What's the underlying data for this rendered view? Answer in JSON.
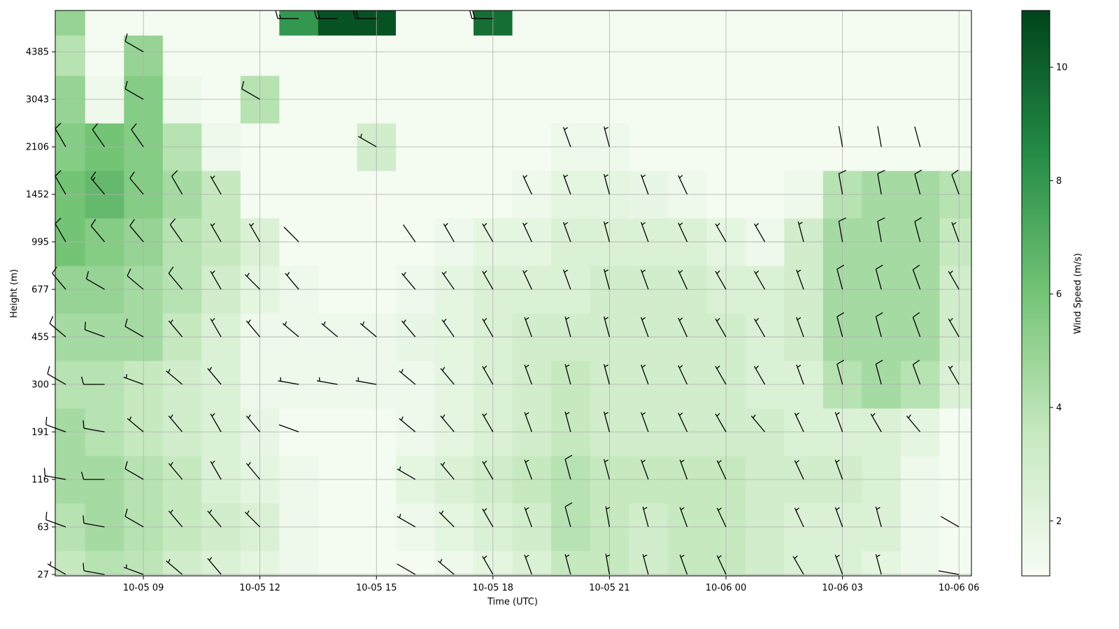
{
  "chart_data": {
    "type": "heatmap",
    "x_label": "Time (UTC)",
    "y_label": "Height (m)",
    "colorbar_label": "Wind Speed (m/s)",
    "x": [
      7,
      8,
      9,
      10,
      11,
      12,
      13,
      14,
      15,
      16,
      17,
      18,
      19,
      20,
      21,
      22,
      23,
      24,
      25,
      26,
      27,
      28,
      29,
      30
    ],
    "y": [
      0,
      1,
      2,
      3,
      4,
      5,
      6,
      7,
      8,
      9,
      10,
      11,
      11.7
    ],
    "xlim": [
      6.73,
      30.32
    ],
    "xticks": [
      {
        "value": 9,
        "label": "10-05 09"
      },
      {
        "value": 12,
        "label": "10-05 12"
      },
      {
        "value": 15,
        "label": "10-05 15"
      },
      {
        "value": 18,
        "label": "10-05 18"
      },
      {
        "value": 21,
        "label": "10-05 21"
      },
      {
        "value": 24,
        "label": "10-06 00"
      },
      {
        "value": 27,
        "label": "10-06 03"
      },
      {
        "value": 30,
        "label": "10-06 06"
      }
    ],
    "ylim": [
      -0.03,
      11.87
    ],
    "yticks": [
      {
        "value": 0,
        "label": "27"
      },
      {
        "value": 1,
        "label": "63"
      },
      {
        "value": 2,
        "label": "116"
      },
      {
        "value": 3,
        "label": "191"
      },
      {
        "value": 4,
        "label": "300"
      },
      {
        "value": 5,
        "label": "455"
      },
      {
        "value": 6,
        "label": "677"
      },
      {
        "value": 7,
        "label": "995"
      },
      {
        "value": 8,
        "label": "1452"
      },
      {
        "value": 9,
        "label": "2106"
      },
      {
        "value": 10,
        "label": "3043"
      },
      {
        "value": 11,
        "label": "4385"
      }
    ],
    "clim": [
      1.03,
      11.0
    ],
    "cticks": [
      2,
      4,
      6,
      8,
      10
    ],
    "colors": [
      "#f7fcf5",
      "#c7e9c0",
      "#74c476",
      "#238b45",
      "#00441b"
    ],
    "grid": true,
    "speed": [
      [
        3.5,
        4,
        3.8,
        3,
        2.5,
        2,
        1.5,
        1.2,
        1.2,
        1.2,
        1.5,
        2,
        2.5,
        3.5,
        3.5,
        3,
        3.5,
        3.5,
        3,
        2.5,
        2.5,
        2,
        1.5,
        1.2
      ],
      [
        4,
        4.5,
        4,
        3.5,
        3,
        2.5,
        1.5,
        1.2,
        1.2,
        1.5,
        2,
        2.5,
        3,
        4,
        3.5,
        3,
        3.5,
        3.5,
        3,
        2.5,
        2.5,
        2.5,
        1.5,
        1.2
      ],
      [
        4.5,
        4.5,
        4,
        3.5,
        2.5,
        2,
        1.5,
        1.2,
        1.2,
        2,
        2.5,
        3,
        3.5,
        4,
        3.5,
        3.5,
        3.5,
        3.5,
        3,
        3,
        3,
        2.5,
        1.5,
        1.2
      ],
      [
        4.5,
        4,
        3.5,
        3,
        2.5,
        1.8,
        1.2,
        1.2,
        1.2,
        1.5,
        2,
        2.5,
        3,
        3.5,
        3,
        3,
        3,
        3,
        3,
        2.5,
        2.5,
        2.5,
        2,
        1.2
      ],
      [
        4,
        4,
        3.5,
        3,
        2.5,
        1.5,
        1.5,
        1.5,
        1.5,
        1.5,
        2,
        2.5,
        3,
        3.5,
        3,
        3,
        3,
        3,
        2.5,
        2.5,
        4,
        4.5,
        4,
        2.5
      ],
      [
        4.5,
        4.5,
        4.5,
        3.5,
        2.5,
        1.5,
        1.5,
        1.5,
        1.5,
        1.8,
        2,
        2.5,
        3,
        3,
        3,
        3,
        3,
        3,
        2.5,
        3,
        4.5,
        4.5,
        4.5,
        3
      ],
      [
        5,
        5,
        4.5,
        4,
        3,
        2,
        1.5,
        1.2,
        1.2,
        1.5,
        2,
        2.5,
        2.5,
        2.5,
        3,
        3,
        3,
        2.5,
        2.5,
        3,
        4.5,
        4.5,
        4.5,
        3
      ],
      [
        6,
        5.5,
        5,
        4,
        3.5,
        2.5,
        1.2,
        1.2,
        1.2,
        1.2,
        1.5,
        2,
        2,
        2.5,
        2.5,
        2.5,
        2.5,
        2,
        1.5,
        3,
        4.5,
        4.5,
        4.5,
        3.5
      ],
      [
        6,
        6.5,
        5.5,
        4.5,
        3.5,
        1.2,
        1.2,
        1.2,
        1.2,
        1.2,
        1.2,
        1.2,
        1.5,
        2,
        2,
        1.8,
        1.5,
        1.2,
        1.2,
        1.5,
        4,
        4.5,
        4.5,
        4
      ],
      [
        5.5,
        6,
        5.5,
        4,
        1.5,
        1.2,
        1.2,
        1.2,
        3,
        1.2,
        1.2,
        1.2,
        1.2,
        1.5,
        1.5,
        1.2,
        1.2,
        1.2,
        1.2,
        1.2,
        1.2,
        1.2,
        1.2,
        1.2
      ],
      [
        5,
        1.5,
        5.5,
        1.5,
        1.2,
        4,
        1.2,
        1.2,
        1.2,
        1.2,
        1.2,
        1.2,
        1.2,
        1.2,
        1.2,
        1.2,
        1.2,
        1.2,
        1.2,
        1.2,
        1.2,
        1.2,
        1.2,
        1.2
      ],
      [
        4,
        1.2,
        5,
        1.2,
        1.2,
        1.2,
        1.2,
        1.2,
        1.2,
        1.2,
        1.2,
        1.2,
        1.2,
        1.2,
        1.2,
        1.2,
        1.2,
        1.2,
        1.2,
        1.2,
        1.2,
        1.2,
        1.2,
        1.2
      ],
      [
        5,
        1.2,
        1.2,
        1.2,
        1.2,
        1.2,
        8,
        10.5,
        10.5,
        1.2,
        1.2,
        9.5,
        1.2,
        1.2,
        1.2,
        1.2,
        1.2,
        1.2,
        1.2,
        1.2,
        1.2,
        1.2,
        1.2,
        1.2
      ]
    ],
    "direction": [
      [
        300,
        280,
        290,
        310,
        320,
        null,
        null,
        null,
        null,
        300,
        310,
        330,
        340,
        345,
        350,
        345,
        340,
        335,
        null,
        330,
        340,
        345,
        null,
        280
      ],
      [
        290,
        280,
        300,
        320,
        320,
        315,
        null,
        null,
        null,
        300,
        315,
        330,
        340,
        345,
        350,
        345,
        340,
        335,
        null,
        335,
        340,
        345,
        null,
        300
      ],
      [
        280,
        270,
        300,
        320,
        330,
        320,
        null,
        null,
        null,
        300,
        320,
        330,
        340,
        345,
        345,
        340,
        340,
        335,
        null,
        335,
        340,
        null,
        null,
        null
      ],
      [
        290,
        280,
        310,
        320,
        330,
        320,
        290,
        null,
        null,
        310,
        320,
        330,
        340,
        345,
        345,
        340,
        335,
        330,
        320,
        335,
        340,
        330,
        320,
        null
      ],
      [
        300,
        270,
        290,
        310,
        320,
        null,
        280,
        280,
        280,
        310,
        320,
        330,
        340,
        345,
        345,
        340,
        335,
        330,
        330,
        340,
        345,
        345,
        340,
        330
      ],
      [
        310,
        290,
        300,
        320,
        330,
        320,
        310,
        310,
        310,
        320,
        325,
        330,
        340,
        345,
        345,
        340,
        335,
        330,
        330,
        340,
        345,
        345,
        340,
        330
      ],
      [
        320,
        300,
        310,
        320,
        330,
        315,
        320,
        null,
        null,
        320,
        325,
        330,
        335,
        340,
        345,
        340,
        335,
        330,
        330,
        340,
        345,
        345,
        340,
        330
      ],
      [
        330,
        320,
        320,
        325,
        330,
        330,
        315,
        null,
        null,
        325,
        330,
        330,
        335,
        340,
        345,
        340,
        335,
        330,
        330,
        345,
        350,
        350,
        345,
        340
      ],
      [
        330,
        320,
        320,
        330,
        330,
        null,
        null,
        null,
        null,
        null,
        null,
        null,
        335,
        340,
        345,
        340,
        335,
        null,
        null,
        null,
        350,
        350,
        345,
        340
      ],
      [
        330,
        325,
        325,
        null,
        null,
        null,
        null,
        null,
        300,
        null,
        null,
        null,
        null,
        340,
        345,
        null,
        null,
        null,
        null,
        null,
        350,
        350,
        345,
        null
      ],
      [
        null,
        null,
        300,
        null,
        null,
        300,
        null,
        null,
        null,
        null,
        null,
        null,
        null,
        null,
        null,
        null,
        null,
        null,
        null,
        null,
        null,
        null,
        null,
        null
      ],
      [
        null,
        null,
        300,
        null,
        null,
        null,
        null,
        null,
        null,
        null,
        null,
        null,
        null,
        null,
        null,
        null,
        null,
        null,
        null,
        null,
        null,
        null,
        null,
        null
      ],
      [
        null,
        null,
        null,
        null,
        null,
        null,
        270,
        270,
        270,
        null,
        null,
        270,
        null,
        null,
        null,
        null,
        null,
        null,
        null,
        null,
        null,
        null,
        null,
        null
      ]
    ]
  }
}
